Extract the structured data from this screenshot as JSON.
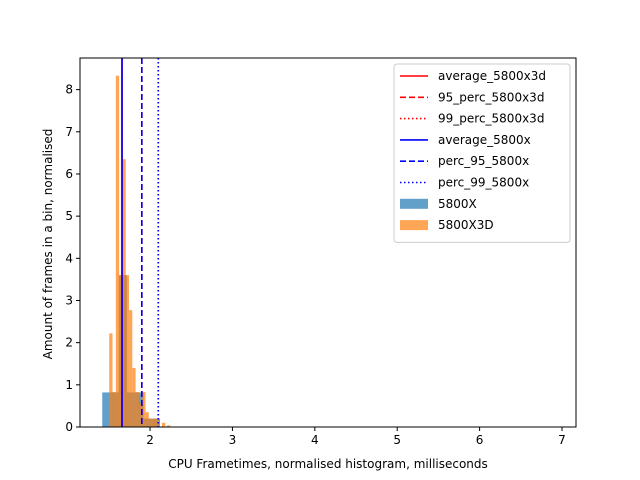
{
  "chart_data": {
    "type": "bar",
    "title": "",
    "xlabel": "CPU Frametimes, normalised histogram, milliseconds",
    "ylabel": "Amount of frames in a bin, normalised",
    "xlim": [
      1.15,
      7.17
    ],
    "ylim": [
      0,
      8.75
    ],
    "x_ticks": [
      2,
      3,
      4,
      5,
      6,
      7
    ],
    "y_ticks": [
      0,
      1,
      2,
      3,
      4,
      5,
      6,
      7,
      8
    ],
    "x_tick_labels": [
      "2",
      "3",
      "4",
      "5",
      "6",
      "7"
    ],
    "y_tick_labels": [
      "0",
      "1",
      "2",
      "3",
      "4",
      "5",
      "6",
      "7",
      "8"
    ],
    "grid": false,
    "legend_position": "top-right",
    "histograms": [
      {
        "name": "5800X",
        "color": "#1f77b4",
        "alpha": 0.7,
        "bins": [
          {
            "x0": 1.42,
            "x1": 1.52,
            "value": 0.82
          },
          {
            "x0": 1.52,
            "x1": 1.62,
            "value": 0.82
          },
          {
            "x0": 1.62,
            "x1": 1.72,
            "value": 3.6
          },
          {
            "x0": 1.72,
            "x1": 1.82,
            "value": 0.82
          },
          {
            "x0": 1.82,
            "x1": 1.92,
            "value": 0.82
          },
          {
            "x0": 1.92,
            "x1": 2.02,
            "value": 0.2
          },
          {
            "x0": 2.02,
            "x1": 2.12,
            "value": 0.2
          }
        ]
      },
      {
        "name": "5800X3D",
        "color": "#ff7f0e",
        "alpha": 0.7,
        "bins": [
          {
            "x0": 1.505,
            "x1": 1.545,
            "value": 2.22
          },
          {
            "x0": 1.545,
            "x1": 1.585,
            "value": 0.83
          },
          {
            "x0": 1.585,
            "x1": 1.625,
            "value": 8.33
          },
          {
            "x0": 1.625,
            "x1": 1.665,
            "value": 3.6
          },
          {
            "x0": 1.665,
            "x1": 1.705,
            "value": 6.35
          },
          {
            "x0": 1.705,
            "x1": 1.745,
            "value": 3.6
          },
          {
            "x0": 1.745,
            "x1": 1.785,
            "value": 2.77
          },
          {
            "x0": 1.785,
            "x1": 1.825,
            "value": 1.4
          },
          {
            "x0": 1.825,
            "x1": 1.865,
            "value": 0.83
          },
          {
            "x0": 1.865,
            "x1": 1.905,
            "value": 0.56
          },
          {
            "x0": 1.905,
            "x1": 1.945,
            "value": 0.83
          },
          {
            "x0": 1.945,
            "x1": 1.985,
            "value": 0.35
          },
          {
            "x0": 1.985,
            "x1": 2.025,
            "value": 0.2
          },
          {
            "x0": 2.025,
            "x1": 2.065,
            "value": 0.2
          },
          {
            "x0": 2.065,
            "x1": 2.105,
            "value": 0.2
          },
          {
            "x0": 2.145,
            "x1": 2.185,
            "value": 0.1
          },
          {
            "x0": 2.205,
            "x1": 2.245,
            "value": 0.04
          }
        ]
      }
    ],
    "vlines": [
      {
        "name": "average_5800x3d",
        "x": 1.66,
        "color": "#ff0000",
        "style": "solid"
      },
      {
        "name": "95_perc_5800x3d",
        "x": 1.9,
        "color": "#ff0000",
        "style": "dashed"
      },
      {
        "name": "99_perc_5800x3d",
        "x": 2.1,
        "color": "#ff0000",
        "style": "dotted"
      },
      {
        "name": "average_5800x",
        "x": 1.66,
        "color": "#0000ff",
        "style": "solid"
      },
      {
        "name": "perc_95_5800x",
        "x": 1.9,
        "color": "#0000ff",
        "style": "dashed"
      },
      {
        "name": "perc_99_5800x",
        "x": 2.1,
        "color": "#0000ff",
        "style": "dotted"
      }
    ],
    "legend": [
      {
        "label": "average_5800x3d",
        "kind": "line",
        "color": "#ff0000",
        "style": "solid"
      },
      {
        "label": "95_perc_5800x3d",
        "kind": "line",
        "color": "#ff0000",
        "style": "dashed"
      },
      {
        "label": "99_perc_5800x3d",
        "kind": "line",
        "color": "#ff0000",
        "style": "dotted"
      },
      {
        "label": "average_5800x",
        "kind": "line",
        "color": "#0000ff",
        "style": "solid"
      },
      {
        "label": "perc_95_5800x",
        "kind": "line",
        "color": "#0000ff",
        "style": "dashed"
      },
      {
        "label": "perc_99_5800x",
        "kind": "line",
        "color": "#0000ff",
        "style": "dotted"
      },
      {
        "label": "5800X",
        "kind": "patch",
        "color": "#1f77b4",
        "alpha": 0.7
      },
      {
        "label": "5800X3D",
        "kind": "patch",
        "color": "#ff7f0e",
        "alpha": 0.7
      }
    ]
  }
}
